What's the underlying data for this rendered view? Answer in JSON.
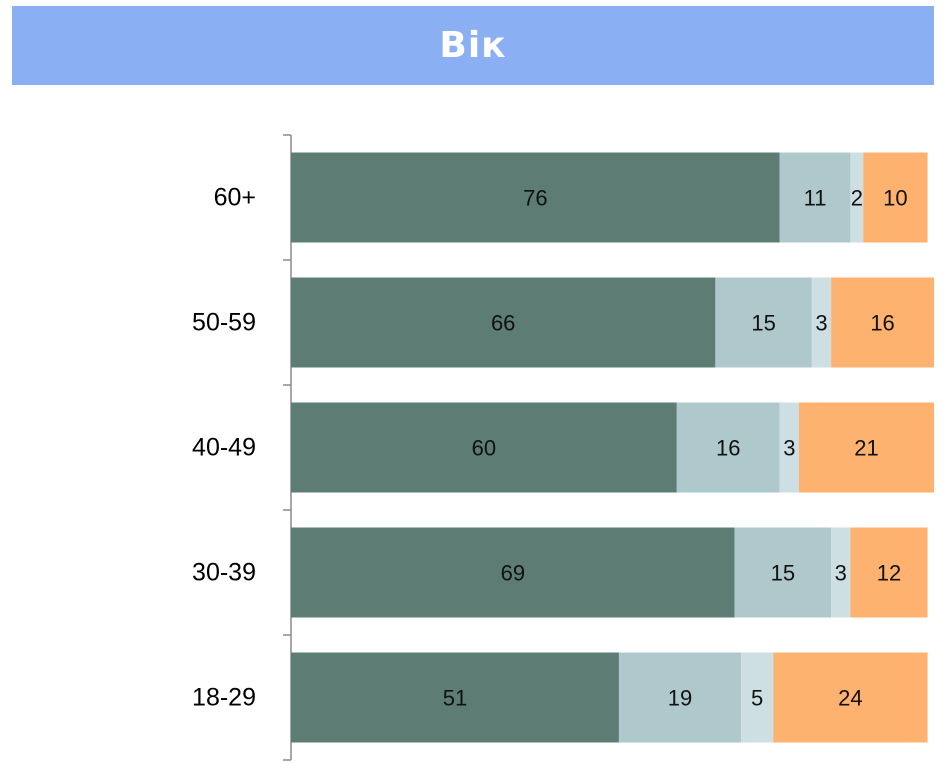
{
  "title": "Вік",
  "colors": {
    "title_bar": "#8aaff3",
    "series": [
      "#5d7c74",
      "#afc8cc",
      "#cddfe3",
      "#fdb270"
    ]
  },
  "chart_data": {
    "type": "bar",
    "orientation": "horizontal",
    "stacked": true,
    "title": "Вік",
    "categories": [
      "60+",
      "50-59",
      "40-49",
      "30-39",
      "18-29"
    ],
    "series": [
      {
        "values": [
          76,
          66,
          60,
          69,
          51
        ]
      },
      {
        "values": [
          11,
          15,
          16,
          15,
          19
        ]
      },
      {
        "values": [
          2,
          3,
          3,
          3,
          5
        ]
      },
      {
        "values": [
          10,
          16,
          21,
          12,
          24
        ]
      }
    ],
    "xlim": [
      0,
      100
    ],
    "grid": false,
    "legend": "none"
  }
}
